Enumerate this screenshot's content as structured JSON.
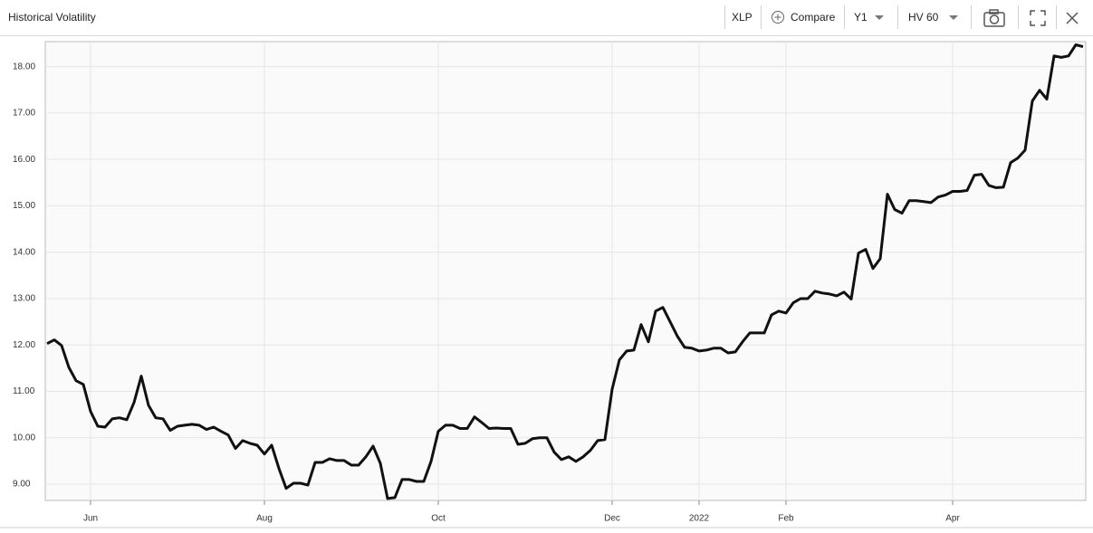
{
  "toolbar": {
    "symbol": "XLP",
    "compare": "Compare",
    "period": "Y1",
    "indicator": "HV 60"
  },
  "chart_data": {
    "type": "line",
    "title": "Historical Volatility",
    "color": "#111111",
    "grid": true,
    "categories": [
      null,
      null,
      null,
      null,
      null,
      null,
      "Jun",
      null,
      null,
      null,
      null,
      null,
      null,
      null,
      null,
      null,
      null,
      null,
      null,
      null,
      null,
      null,
      null,
      null,
      null,
      null,
      null,
      null,
      null,
      null,
      "Aug",
      null,
      null,
      null,
      null,
      null,
      null,
      null,
      null,
      null,
      null,
      null,
      null,
      null,
      null,
      null,
      null,
      null,
      null,
      null,
      null,
      null,
      null,
      null,
      "Oct",
      null,
      null,
      null,
      null,
      null,
      null,
      null,
      null,
      null,
      null,
      null,
      null,
      null,
      null,
      null,
      null,
      null,
      null,
      null,
      null,
      null,
      null,
      null,
      "Dec",
      null,
      null,
      null,
      null,
      null,
      null,
      null,
      null,
      null,
      null,
      null,
      "2022",
      null,
      null,
      null,
      null,
      null,
      null,
      null,
      null,
      null,
      null,
      null,
      "Feb",
      null,
      null,
      null,
      null,
      null,
      null,
      null,
      null,
      null,
      null,
      null,
      null,
      null,
      null,
      null,
      null,
      null,
      null,
      null,
      null,
      null,
      null,
      "Apr",
      null,
      null,
      null,
      null,
      null,
      null,
      null,
      null,
      null,
      null,
      null,
      null,
      null,
      null,
      null,
      null,
      null,
      null
    ],
    "values": [
      12.03,
      12.11,
      11.99,
      11.52,
      11.23,
      11.15,
      10.57,
      10.25,
      10.23,
      10.41,
      10.43,
      10.39,
      10.76,
      11.33,
      10.7,
      10.43,
      10.41,
      10.16,
      10.25,
      10.27,
      10.29,
      10.27,
      10.18,
      10.23,
      10.14,
      10.06,
      9.77,
      9.94,
      9.88,
      9.84,
      9.65,
      9.84,
      9.34,
      8.91,
      9.02,
      9.02,
      8.98,
      9.47,
      9.47,
      9.55,
      9.51,
      9.51,
      9.41,
      9.41,
      9.59,
      9.82,
      9.45,
      8.69,
      8.71,
      9.1,
      9.1,
      9.06,
      9.06,
      9.49,
      10.14,
      10.27,
      10.27,
      10.2,
      10.2,
      10.45,
      10.33,
      10.2,
      10.21,
      10.2,
      10.2,
      9.86,
      9.88,
      9.98,
      10.0,
      10.0,
      9.69,
      9.53,
      9.59,
      9.49,
      9.59,
      9.73,
      9.94,
      9.96,
      11.05,
      11.68,
      11.87,
      11.89,
      12.44,
      12.07,
      12.73,
      12.81,
      12.5,
      12.19,
      11.95,
      11.93,
      11.87,
      11.89,
      11.93,
      11.93,
      11.83,
      11.85,
      12.07,
      12.26,
      12.26,
      12.26,
      12.65,
      12.73,
      12.69,
      12.91,
      13.0,
      13.0,
      13.16,
      13.12,
      13.1,
      13.06,
      13.14,
      12.99,
      13.98,
      14.06,
      13.65,
      13.86,
      15.25,
      14.92,
      14.84,
      15.11,
      15.11,
      15.09,
      15.07,
      15.19,
      15.23,
      15.31,
      15.31,
      15.33,
      15.66,
      15.68,
      15.44,
      15.39,
      15.4,
      15.93,
      16.03,
      16.2,
      17.26,
      17.49,
      17.3,
      18.23,
      18.2,
      18.23,
      18.47,
      18.43
    ],
    "ylim": [
      8.65,
      18.5
    ],
    "yticks": [
      {
        "value": 9,
        "label": "9.00"
      },
      {
        "value": 10,
        "label": "10.00"
      },
      {
        "value": 11,
        "label": "11.00"
      },
      {
        "value": 12,
        "label": "12.00"
      },
      {
        "value": 13,
        "label": "13.00"
      },
      {
        "value": 14,
        "label": "14.00"
      },
      {
        "value": 15,
        "label": "15.00"
      },
      {
        "value": 16,
        "label": "16.00"
      },
      {
        "value": 17,
        "label": "17.00"
      },
      {
        "value": 18,
        "label": "18.00"
      }
    ]
  }
}
